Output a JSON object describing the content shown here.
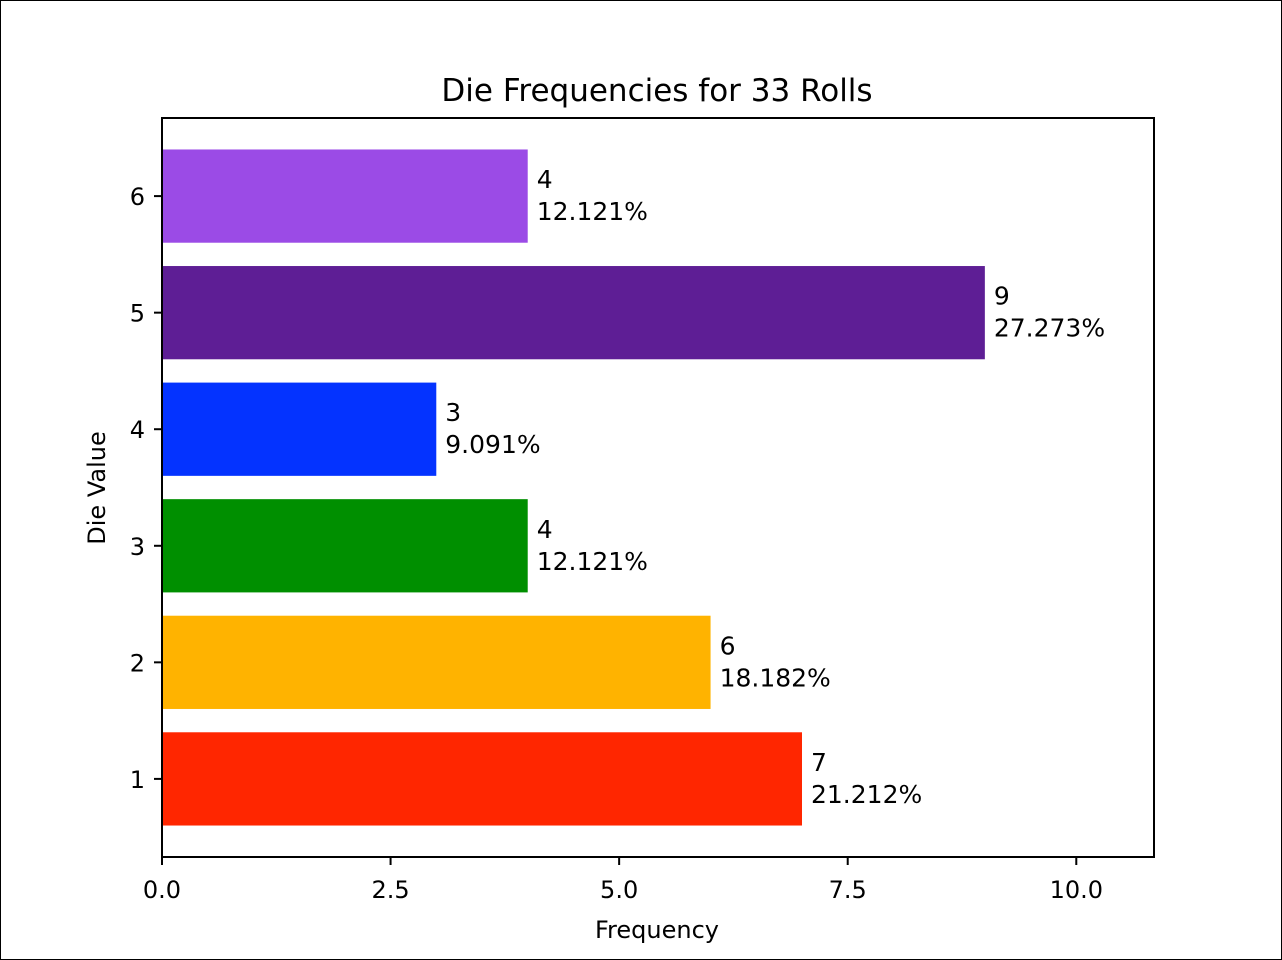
{
  "chart_data": {
    "type": "bar",
    "orientation": "horizontal",
    "title": "Die Frequencies for 33 Rolls",
    "xlabel": "Frequency",
    "ylabel": "Die Value",
    "xlim": [
      0,
      10.85
    ],
    "ylim": [
      0.33,
      6.67
    ],
    "xticks": [
      0.0,
      2.5,
      5.0,
      7.5,
      10.0
    ],
    "xtick_labels": [
      "0.0",
      "2.5",
      "5.0",
      "7.5",
      "10.0"
    ],
    "categories": [
      "1",
      "2",
      "3",
      "4",
      "5",
      "6"
    ],
    "category_values": [
      1,
      2,
      3,
      4,
      5,
      6
    ],
    "values": [
      7,
      6,
      4,
      3,
      9,
      4
    ],
    "data_labels": [
      {
        "count": "7",
        "percent": "21.212%"
      },
      {
        "count": "6",
        "percent": "18.182%"
      },
      {
        "count": "4",
        "percent": "12.121%"
      },
      {
        "count": "3",
        "percent": "9.091%"
      },
      {
        "count": "9",
        "percent": "27.273%"
      },
      {
        "count": "4",
        "percent": "12.121%"
      }
    ],
    "colors": [
      "#ff2600",
      "#ffb300",
      "#008f00",
      "#0433ff",
      "#5e1e95",
      "#9b4be6"
    ],
    "grid": false,
    "legend": "none"
  }
}
